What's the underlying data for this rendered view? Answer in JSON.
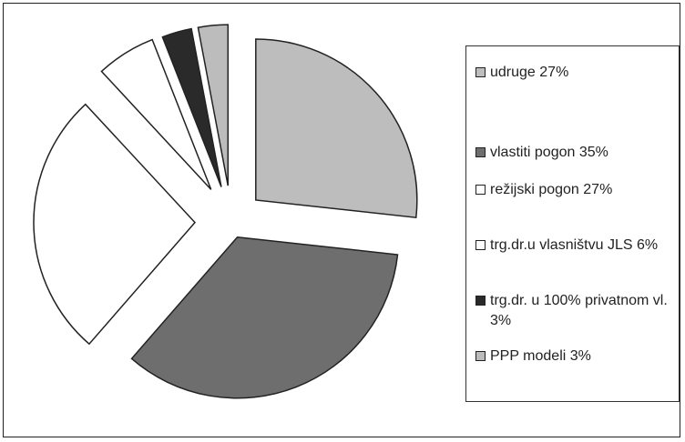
{
  "chart_data": {
    "type": "pie",
    "categories": [
      "udruge",
      "vlastiti pogon",
      "režijski pogon",
      "trg.dr.u vlasništvu JLS",
      "trg.dr. u 100% privatnom vl.",
      "PPP modeli"
    ],
    "values": [
      27,
      35,
      27,
      6,
      3,
      3
    ],
    "colors": [
      "#bdbdbd",
      "#6e6e6e",
      "#ffffff",
      "#ffffff",
      "#2a2a2a",
      "#bcbcbc"
    ],
    "exploded": true,
    "legend_position": "right",
    "legend": [
      {
        "label": "udruge 27%",
        "color": "#bdbdbd"
      },
      {
        "label": "vlastiti pogon 35%",
        "color": "#6e6e6e"
      },
      {
        "label": "režijski pogon 27%",
        "color": "#ffffff"
      },
      {
        "label": "trg.dr.u vlasništvu JLS 6%",
        "color": "#ffffff"
      },
      {
        "label": "trg.dr. u 100% privatnom vl. 3%",
        "color": "#2a2a2a"
      },
      {
        "label": "PPP modeli 3%",
        "color": "#bcbcbc"
      }
    ]
  }
}
